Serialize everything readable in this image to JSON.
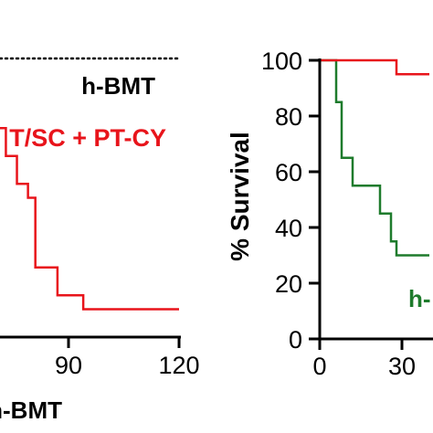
{
  "chart_data": [
    {
      "type": "line",
      "step": true,
      "xlabel": "",
      "ylabel": "",
      "xlim": [
        0,
        120
      ],
      "ylim": [
        0,
        100
      ],
      "x_ticks_visible": [
        "90",
        "120"
      ],
      "grid": false,
      "bottom_label": "h-BMT",
      "series": [
        {
          "name": "h-BMT",
          "style": "dotted",
          "color": "#000000",
          "x": [
            0,
            120
          ],
          "y": [
            100,
            100
          ]
        },
        {
          "name": "T/SC + PT-CY",
          "style": "solid",
          "color": "#e8141b",
          "x": [
            0,
            62,
            64,
            66,
            69,
            71,
            73,
            76,
            79,
            81,
            87,
            94,
            120
          ],
          "y": [
            100,
            95,
            90,
            85,
            80,
            75,
            65,
            55,
            50,
            25,
            15,
            10,
            10
          ]
        }
      ]
    },
    {
      "type": "line",
      "step": true,
      "xlabel": "",
      "ylabel": "% Survival",
      "xlim": [
        0,
        40
      ],
      "ylim": [
        0,
        100
      ],
      "x_ticks_visible": [
        "0",
        "30"
      ],
      "y_ticks": [
        "0",
        "20",
        "40",
        "60",
        "80",
        "100"
      ],
      "grid": false,
      "series": [
        {
          "name": "h-",
          "style": "solid",
          "color": "#1e7b2c",
          "x": [
            0,
            5,
            6,
            8,
            12,
            19,
            22,
            26,
            28,
            30,
            40
          ],
          "y": [
            100,
            100,
            85,
            65,
            55,
            55,
            45,
            35,
            30,
            30,
            30
          ]
        },
        {
          "style": "solid",
          "color": "#e8141b",
          "x": [
            0,
            28,
            40
          ],
          "y": [
            100,
            95,
            95
          ]
        }
      ]
    }
  ]
}
